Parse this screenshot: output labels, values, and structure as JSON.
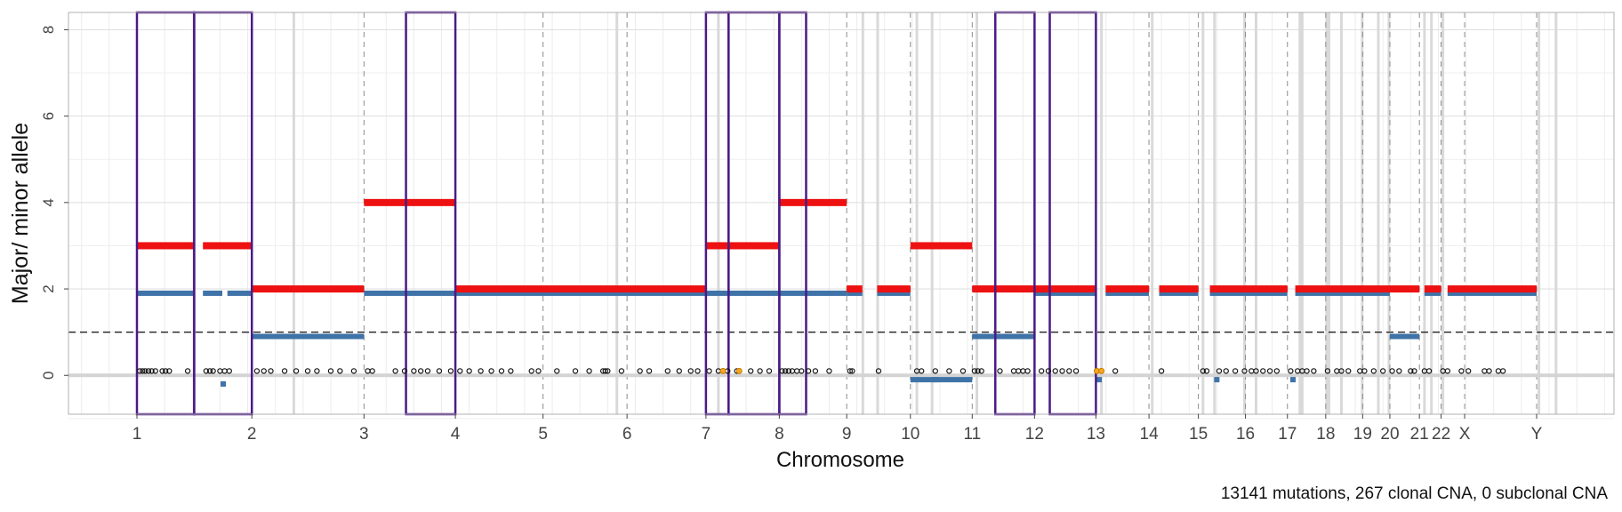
{
  "chart_data": {
    "type": "scatter",
    "title": "",
    "xlabel": "Chromosome",
    "ylabel": "Major/ minor allele",
    "ylim": [
      -0.9,
      8.4
    ],
    "yticks": [
      0,
      2,
      4,
      6,
      8
    ],
    "grid": true,
    "reference_line": {
      "y": 1,
      "style": "dashed"
    },
    "chromosomes": [
      {
        "label": "1",
        "start": 0,
        "end": 249
      },
      {
        "label": "2",
        "start": 249,
        "end": 492
      },
      {
        "label": "3",
        "start": 492,
        "end": 690
      },
      {
        "label": "4",
        "start": 690,
        "end": 880
      },
      {
        "label": "5",
        "start": 880,
        "end": 1062
      },
      {
        "label": "6",
        "start": 1062,
        "end": 1233
      },
      {
        "label": "7",
        "start": 1233,
        "end": 1392
      },
      {
        "label": "8",
        "start": 1392,
        "end": 1538
      },
      {
        "label": "9",
        "start": 1538,
        "end": 1676
      },
      {
        "label": "10",
        "start": 1676,
        "end": 1810
      },
      {
        "label": "11",
        "start": 1810,
        "end": 1945
      },
      {
        "label": "12",
        "start": 1945,
        "end": 2078
      },
      {
        "label": "13",
        "start": 2078,
        "end": 2193
      },
      {
        "label": "14",
        "start": 2193,
        "end": 2300
      },
      {
        "label": "15",
        "start": 2300,
        "end": 2402
      },
      {
        "label": "16",
        "start": 2402,
        "end": 2493
      },
      {
        "label": "17",
        "start": 2493,
        "end": 2576
      },
      {
        "label": "18",
        "start": 2576,
        "end": 2656
      },
      {
        "label": "19",
        "start": 2656,
        "end": 2715
      },
      {
        "label": "20",
        "start": 2715,
        "end": 2779
      },
      {
        "label": "21",
        "start": 2779,
        "end": 2826
      },
      {
        "label": "22",
        "start": 2826,
        "end": 2877
      },
      {
        "label": "X",
        "start": 2877,
        "end": 3033
      },
      {
        "label": "Y",
        "start": 3033,
        "end": 3090
      }
    ],
    "x_tick_labels": [
      "1",
      "2",
      "3",
      "4",
      "5",
      "6",
      "7",
      "8",
      "9",
      "10",
      "11",
      "12",
      "13",
      "14",
      "15",
      "16",
      "17",
      "18",
      "19",
      "20",
      "21",
      "22",
      "X",
      "Y"
    ],
    "major_allele_segments": [
      {
        "x0": 0,
        "x1": 124,
        "y": 3
      },
      {
        "x0": 143,
        "x1": 249,
        "y": 3
      },
      {
        "x0": 249,
        "x1": 492,
        "y": 2
      },
      {
        "x0": 492,
        "x1": 690,
        "y": 4
      },
      {
        "x0": 690,
        "x1": 1233,
        "y": 2
      },
      {
        "x0": 1233,
        "x1": 1392,
        "y": 3
      },
      {
        "x0": 1392,
        "x1": 1538,
        "y": 4
      },
      {
        "x0": 1538,
        "x1": 1572,
        "y": 2
      },
      {
        "x0": 1604,
        "x1": 1676,
        "y": 2
      },
      {
        "x0": 1676,
        "x1": 1810,
        "y": 3
      },
      {
        "x0": 1810,
        "x1": 2078,
        "y": 2
      },
      {
        "x0": 2099,
        "x1": 2193,
        "y": 2
      },
      {
        "x0": 2215,
        "x1": 2300,
        "y": 2
      },
      {
        "x0": 2325,
        "x1": 2493,
        "y": 2
      },
      {
        "x0": 2510,
        "x1": 2779,
        "y": 2
      },
      {
        "x0": 2790,
        "x1": 2826,
        "y": 2
      },
      {
        "x0": 2840,
        "x1": 3033,
        "y": 2
      }
    ],
    "minor_allele_segments": [
      {
        "x0": 0,
        "x1": 124,
        "y": 1.9
      },
      {
        "x0": 143,
        "x1": 185,
        "y": 1.9
      },
      {
        "x0": 196,
        "x1": 249,
        "y": 1.9
      },
      {
        "x0": 249,
        "x1": 492,
        "y": 0.9
      },
      {
        "x0": 492,
        "x1": 1538,
        "y": 1.9
      },
      {
        "x0": 1538,
        "x1": 1572,
        "y": 1.9
      },
      {
        "x0": 1604,
        "x1": 1676,
        "y": 1.9
      },
      {
        "x0": 1676,
        "x1": 1810,
        "y": -0.1
      },
      {
        "x0": 1810,
        "x1": 1945,
        "y": 0.9
      },
      {
        "x0": 1945,
        "x1": 2078,
        "y": 1.9
      },
      {
        "x0": 2099,
        "x1": 2193,
        "y": 1.9
      },
      {
        "x0": 2215,
        "x1": 2300,
        "y": 1.9
      },
      {
        "x0": 2325,
        "x1": 2493,
        "y": 1.9
      },
      {
        "x0": 2510,
        "x1": 2715,
        "y": 1.9
      },
      {
        "x0": 2715,
        "x1": 2779,
        "y": 0.9
      },
      {
        "x0": 2790,
        "x1": 2826,
        "y": 1.9
      },
      {
        "x0": 2840,
        "x1": 3033,
        "y": 1.9
      }
    ],
    "mutation_points": [
      6,
      12,
      18,
      25,
      32,
      40,
      55,
      62,
      70,
      110,
      150,
      158,
      165,
      180,
      190,
      200,
      260,
      275,
      290,
      320,
      345,
      370,
      390,
      420,
      440,
      470,
      500,
      510,
      560,
      580,
      600,
      615,
      630,
      655,
      680,
      700,
      720,
      745,
      768,
      790,
      810,
      855,
      870,
      910,
      950,
      980,
      1010,
      1015,
      1020,
      1050,
      1090,
      1110,
      1150,
      1175,
      1200,
      1215,
      1240,
      1260,
      1280,
      1300,
      1330,
      1350,
      1370,
      1398,
      1405,
      1412,
      1420,
      1430,
      1440,
      1455,
      1470,
      1500,
      1545,
      1550,
      1607,
      1690,
      1700,
      1730,
      1760,
      1790,
      1815,
      1822,
      1830,
      1870,
      1900,
      1910,
      1920,
      1930,
      1960,
      1975,
      1990,
      2005,
      2020,
      2035,
      2120,
      2220,
      2310,
      2318,
      2345,
      2360,
      2380,
      2400,
      2415,
      2425,
      2440,
      2455,
      2470,
      2500,
      2515,
      2525,
      2535,
      2550,
      2580,
      2600,
      2610,
      2625,
      2650,
      2660,
      2680,
      2700,
      2720,
      2735,
      2760,
      2768,
      2790,
      2800,
      2830,
      2840,
      2870,
      2885,
      2920,
      2930,
      2950,
      2960
    ],
    "mutation_y": 0.1,
    "highlight_points": [
      {
        "x": 1270,
        "y": 0.1
      },
      {
        "x": 1305,
        "y": 0.1
      },
      {
        "x": 2080,
        "y": 0.1
      },
      {
        "x": 2090,
        "y": 0.1
      }
    ],
    "small_minor_marks": [
      {
        "x": 187,
        "y": -0.2
      },
      {
        "x": 1730,
        "y": -0.1
      },
      {
        "x": 2085,
        "y": -0.1
      },
      {
        "x": 2340,
        "y": -0.1
      },
      {
        "x": 2505,
        "y": -0.1
      }
    ],
    "highlight_boxes": [
      [
        0,
        124
      ],
      [
        124,
        249
      ],
      [
        583,
        690
      ],
      [
        1233,
        1282
      ],
      [
        1282,
        1392
      ],
      [
        1392,
        1450
      ],
      [
        1860,
        1945
      ],
      [
        1978,
        2078
      ]
    ],
    "gray_bands": [
      340,
      1040,
      1260,
      1573,
      1605,
      1690,
      1723,
      1820,
      2090,
      2200,
      2310,
      2335,
      2400,
      2425,
      2520,
      2525,
      2578,
      2583,
      2610,
      2655,
      2690,
      2713,
      2790,
      2805,
      2830,
      3038,
      3075
    ],
    "colors": {
      "major": "#ee1111",
      "minor": "#3f73a8",
      "boxes": "#4b1a86",
      "bands": "#d9d9d9",
      "mutation": "#111111",
      "highlight": "#f5a623"
    }
  },
  "caption": "13141 mutations, 267 clonal CNA, 0 subclonal CNA"
}
